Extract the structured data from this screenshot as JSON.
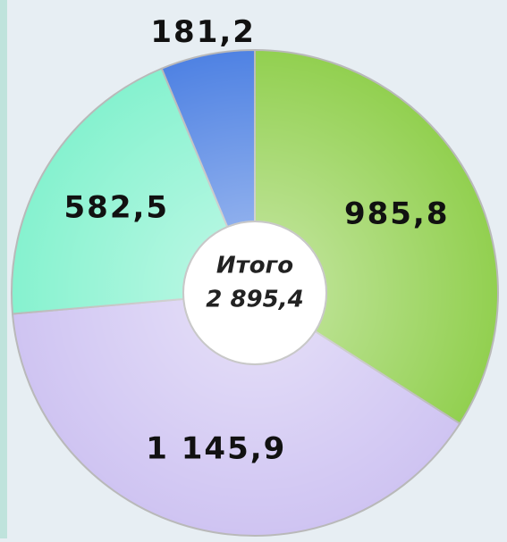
{
  "chart_data": {
    "type": "donut",
    "categories": [
      null,
      null,
      null,
      null
    ],
    "values": [
      985.8,
      1145.9,
      582.5,
      181.2
    ],
    "value_labels": [
      "985,8",
      "1 145,9",
      "582,5",
      "181,2"
    ],
    "colors": [
      "#92d050",
      "#cfc4f2",
      "#86f2cf",
      "#4f82e3"
    ],
    "center_title": "Итого",
    "total": {
      "value": 2895.4,
      "label": "2 895,4"
    }
  }
}
